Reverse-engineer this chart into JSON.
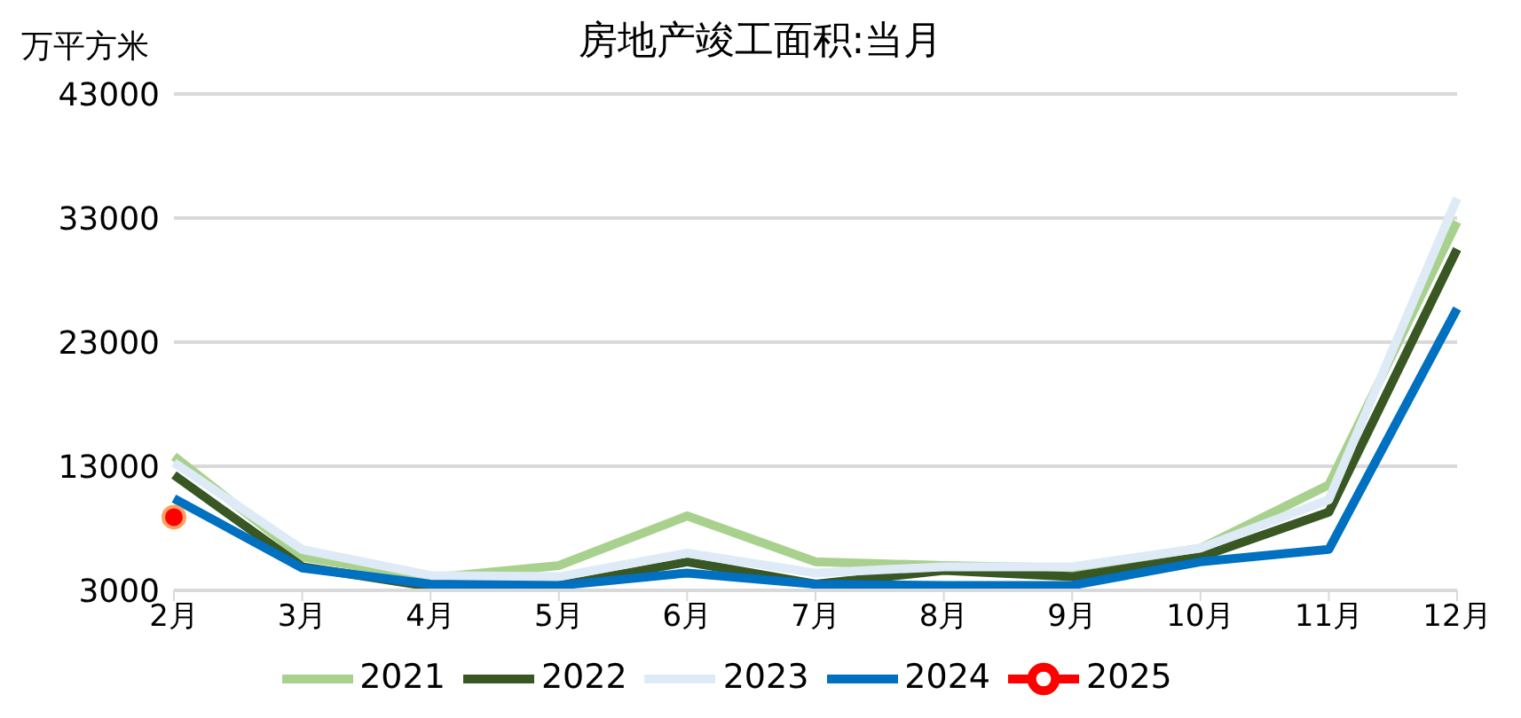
{
  "chart_data": {
    "type": "line",
    "title": "房地产竣工面积:当月",
    "ylabel": "万平方米",
    "categories": [
      "2月",
      "3月",
      "4月",
      "5月",
      "6月",
      "7月",
      "8月",
      "9月",
      "10月",
      "11月",
      "12月"
    ],
    "series": [
      {
        "name": "2021",
        "color": "#a9d18e",
        "values": [
          13800,
          5700,
          4000,
          5000,
          9000,
          5300,
          5000,
          4800,
          6400,
          11500,
          32700
        ]
      },
      {
        "name": "2022",
        "color": "#385723",
        "values": [
          12300,
          4900,
          3300,
          3400,
          5300,
          3500,
          4600,
          4100,
          5700,
          9300,
          30500
        ]
      },
      {
        "name": "2023",
        "color": "#deebf7",
        "values": [
          13300,
          6300,
          4200,
          4100,
          6000,
          4400,
          4900,
          4900,
          6400,
          10300,
          34600
        ]
      },
      {
        "name": "2024",
        "color": "#0070c0",
        "values": [
          10400,
          4800,
          3500,
          3400,
          4400,
          3500,
          3400,
          3400,
          5300,
          6300,
          25700
        ]
      },
      {
        "name": "2025",
        "color": "#ff0000",
        "marker": "circle",
        "values": [
          8900,
          null,
          null,
          null,
          null,
          null,
          null,
          null,
          null,
          null,
          null
        ]
      }
    ],
    "ylim": [
      3000,
      43000
    ],
    "yticks": [
      3000,
      13000,
      23000,
      33000,
      43000
    ],
    "grid": "y",
    "legend": "bottom",
    "marker": "none",
    "line_style": "solid"
  }
}
